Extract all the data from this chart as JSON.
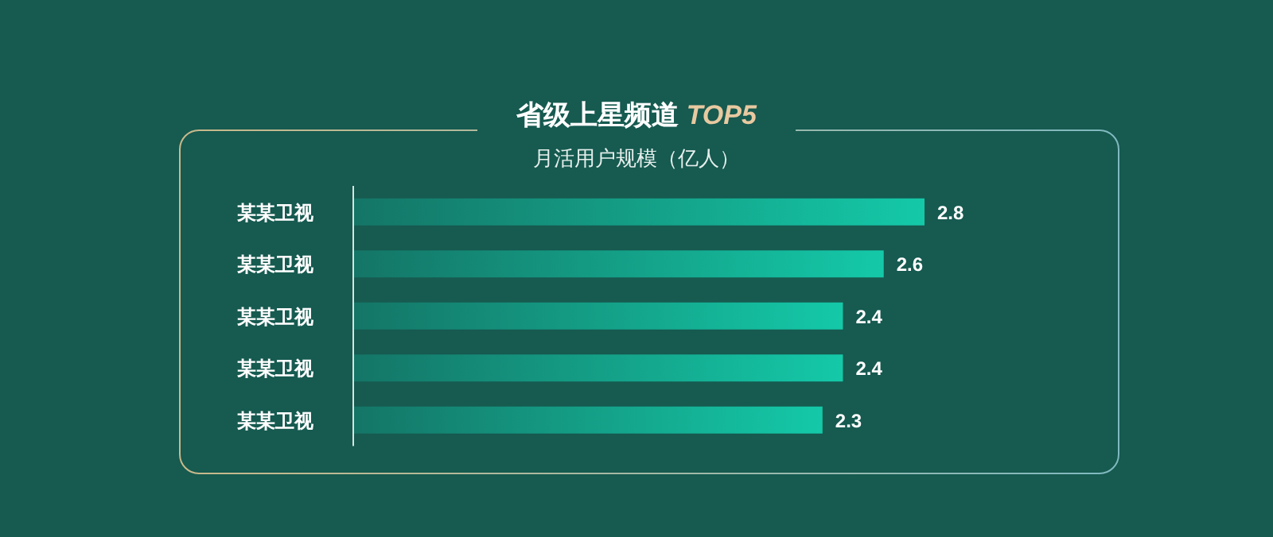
{
  "chart_data": {
    "type": "bar",
    "orientation": "horizontal",
    "title": "省级上星频道 TOP5",
    "subtitle": "月活用户规模（亿人）",
    "categories": [
      "某某卫视",
      "某某卫视",
      "某某卫视",
      "某某卫视",
      "某某卫视"
    ],
    "values": [
      2.8,
      2.6,
      2.4,
      2.4,
      2.3
    ],
    "color": "#14c9a8",
    "data_labels": true
  }
}
